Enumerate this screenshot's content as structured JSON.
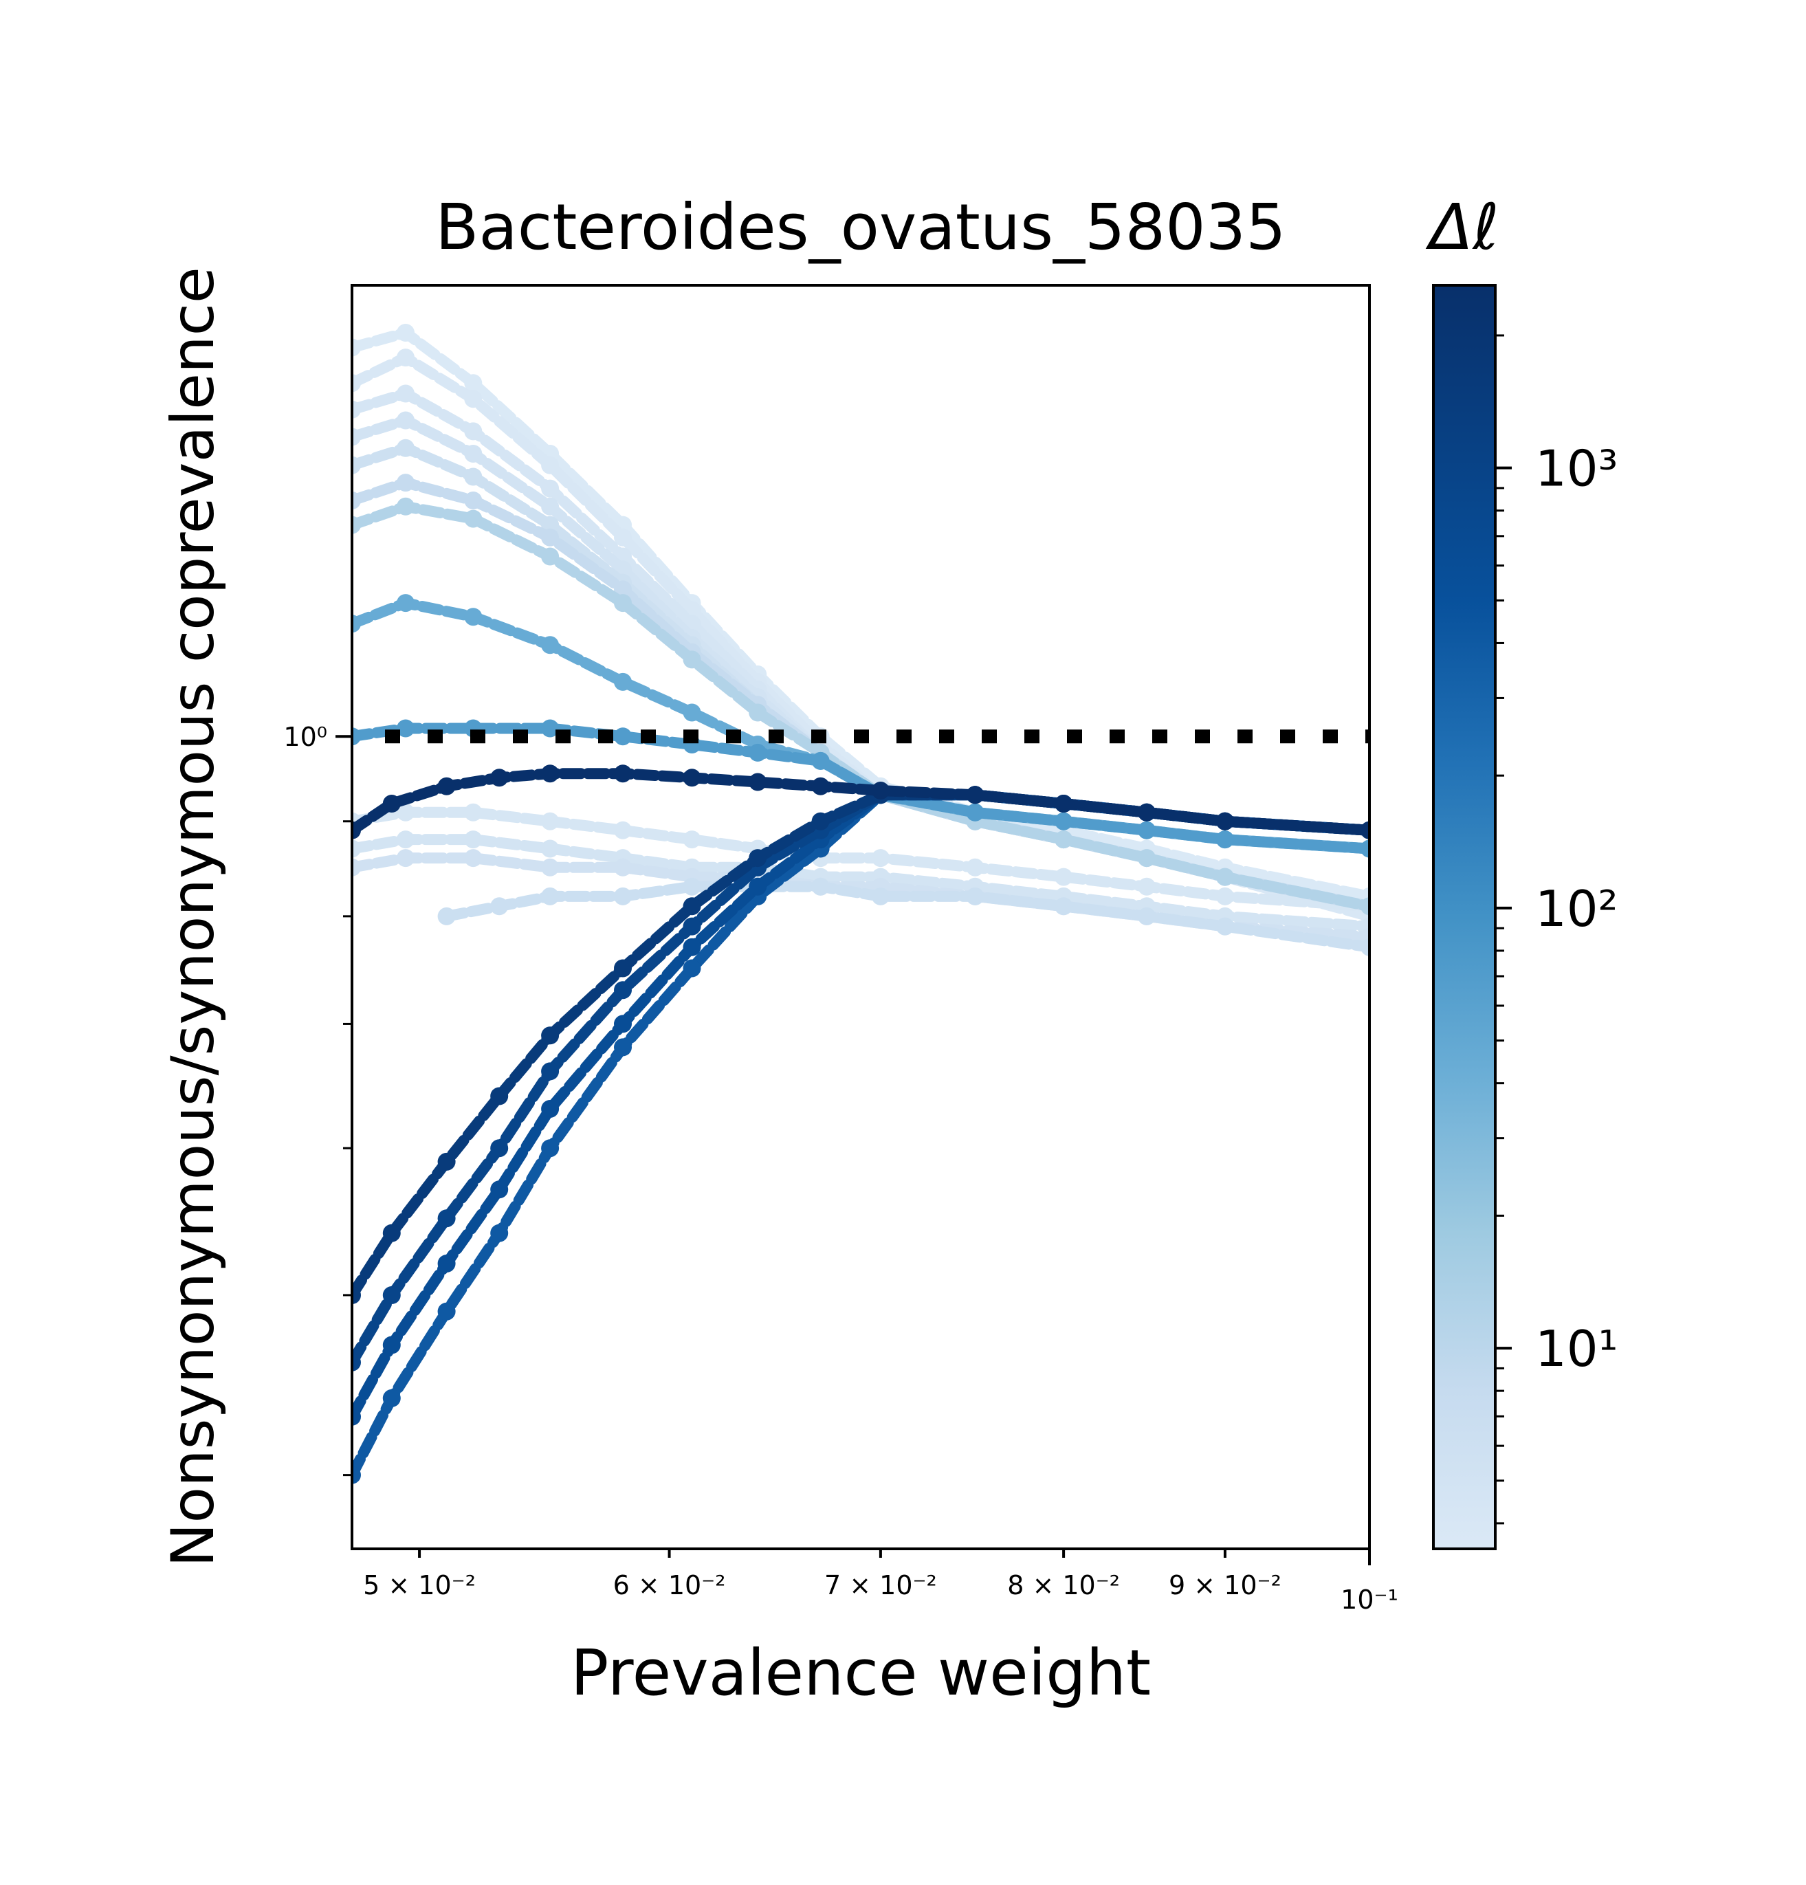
{
  "chart_data": {
    "type": "scatter",
    "title": "Bacteroides_ovatus_58035",
    "xlabel": "Prevalence weight",
    "ylabel": "Nonsynonymous/synonymous coprevalence",
    "xscale": "log",
    "yscale": "log",
    "xlim": [
      0.0476,
      0.1
    ],
    "ylim": [
      0.365,
      1.75
    ],
    "x_ticks": [
      {
        "value": 0.05,
        "label": "5 × 10⁻²"
      },
      {
        "value": 0.06,
        "label": "6 × 10⁻²"
      },
      {
        "value": 0.07,
        "label": "7 × 10⁻²"
      },
      {
        "value": 0.08,
        "label": "8 × 10⁻²"
      },
      {
        "value": 0.09,
        "label": "9 × 10⁻²"
      },
      {
        "value": 0.1,
        "label": "10⁻¹"
      }
    ],
    "y_ticks": [
      {
        "value": 1.0,
        "label": "10⁰"
      }
    ],
    "reference_line": {
      "y": 1.0,
      "style": "dotted",
      "color": "#000000"
    },
    "colorbar": {
      "title": "Δℓ",
      "scale": "log",
      "colormap": "Blues",
      "range": [
        3.5,
        2600
      ],
      "ticks": [
        {
          "value": 10,
          "label": "10¹"
        },
        {
          "value": 100,
          "label": "10²"
        },
        {
          "value": 1000,
          "label": "10³"
        }
      ]
    },
    "grid": false,
    "series": [
      {
        "dl": 3.6,
        "x": [
          0.0476,
          0.0495,
          0.052,
          0.055,
          0.058,
          0.061,
          0.064,
          0.067,
          0.07,
          0.075,
          0.08,
          0.085,
          0.09,
          0.1
        ],
        "y": [
          1.62,
          1.65,
          1.55,
          1.42,
          1.3,
          1.18,
          1.08,
          1.0,
          0.94,
          0.91,
          0.89,
          0.87,
          0.85,
          0.82
        ]
      },
      {
        "dl": 4.0,
        "x": [
          0.0476,
          0.0495,
          0.052,
          0.055,
          0.058,
          0.061,
          0.064,
          0.067,
          0.07,
          0.075,
          0.08,
          0.085,
          0.09,
          0.1
        ],
        "y": [
          1.55,
          1.6,
          1.52,
          1.4,
          1.28,
          1.17,
          1.07,
          0.99,
          0.93,
          0.9,
          0.88,
          0.86,
          0.84,
          0.8
        ]
      },
      {
        "dl": 4.5,
        "x": [
          0.0476,
          0.0495,
          0.052,
          0.055,
          0.058,
          0.061,
          0.064,
          0.067,
          0.07,
          0.075,
          0.08,
          0.085,
          0.09,
          0.1
        ],
        "y": [
          1.5,
          1.53,
          1.46,
          1.36,
          1.25,
          1.15,
          1.06,
          0.98,
          0.93,
          0.9,
          0.88,
          0.86,
          0.84,
          0.81
        ]
      },
      {
        "dl": 5.0,
        "x": [
          0.0476,
          0.0495,
          0.052,
          0.055,
          0.058,
          0.061,
          0.064,
          0.067,
          0.07,
          0.075,
          0.08,
          0.085,
          0.09,
          0.1
        ],
        "y": [
          1.45,
          1.48,
          1.42,
          1.33,
          1.23,
          1.13,
          1.05,
          0.98,
          0.93,
          0.9,
          0.88,
          0.86,
          0.84,
          0.81
        ]
      },
      {
        "dl": 6.0,
        "x": [
          0.0476,
          0.0495,
          0.052,
          0.055,
          0.058,
          0.061,
          0.064,
          0.067,
          0.07,
          0.075,
          0.08,
          0.085,
          0.09,
          0.1
        ],
        "y": [
          1.4,
          1.43,
          1.38,
          1.3,
          1.21,
          1.12,
          1.04,
          0.98,
          0.93,
          0.9,
          0.88,
          0.86,
          0.84,
          0.81
        ]
      },
      {
        "dl": 8.0,
        "x": [
          0.0476,
          0.0495,
          0.052,
          0.055,
          0.058,
          0.061,
          0.064,
          0.067,
          0.07,
          0.075,
          0.08,
          0.085,
          0.09,
          0.1
        ],
        "y": [
          1.34,
          1.37,
          1.34,
          1.28,
          1.2,
          1.11,
          1.04,
          0.98,
          0.93,
          0.9,
          0.88,
          0.86,
          0.84,
          0.81
        ]
      },
      {
        "dl": 12.0,
        "x": [
          0.0476,
          0.0495,
          0.052,
          0.055,
          0.058,
          0.061,
          0.064,
          0.067,
          0.07,
          0.075,
          0.08,
          0.085,
          0.09,
          0.1
        ],
        "y": [
          1.3,
          1.33,
          1.31,
          1.25,
          1.18,
          1.1,
          1.03,
          0.98,
          0.93,
          0.9,
          0.88,
          0.86,
          0.84,
          0.81
        ]
      },
      {
        "dl": 45.0,
        "x": [
          0.0476,
          0.0495,
          0.052,
          0.055,
          0.058,
          0.061,
          0.064,
          0.067,
          0.07,
          0.075,
          0.08,
          0.085,
          0.09,
          0.1
        ],
        "y": [
          1.15,
          1.18,
          1.16,
          1.12,
          1.07,
          1.03,
          0.99,
          0.97,
          0.93,
          0.91,
          0.9,
          0.89,
          0.88,
          0.87
        ]
      },
      {
        "dl": 70.0,
        "x": [
          0.0476,
          0.0495,
          0.052,
          0.055,
          0.058,
          0.061,
          0.064,
          0.067,
          0.07,
          0.075,
          0.08,
          0.085,
          0.09,
          0.1
        ],
        "y": [
          1.0,
          1.01,
          1.01,
          1.01,
          1.0,
          0.99,
          0.98,
          0.97,
          0.93,
          0.91,
          0.9,
          0.89,
          0.88,
          0.87
        ]
      },
      {
        "dl": 4.2,
        "x": [
          0.0476,
          0.0495,
          0.052,
          0.055,
          0.058,
          0.061,
          0.064,
          0.067,
          0.07,
          0.075,
          0.08,
          0.085,
          0.09,
          0.1
        ],
        "y": [
          0.9,
          0.91,
          0.91,
          0.9,
          0.89,
          0.88,
          0.87,
          0.86,
          0.86,
          0.85,
          0.84,
          0.83,
          0.82,
          0.81
        ]
      },
      {
        "dl": 4.8,
        "x": [
          0.0476,
          0.0495,
          0.052,
          0.055,
          0.058,
          0.061,
          0.064,
          0.067,
          0.07,
          0.075,
          0.08,
          0.085,
          0.09,
          0.1
        ],
        "y": [
          0.87,
          0.88,
          0.88,
          0.87,
          0.86,
          0.85,
          0.85,
          0.84,
          0.84,
          0.83,
          0.82,
          0.81,
          0.8,
          0.79
        ]
      },
      {
        "dl": 5.5,
        "x": [
          0.0476,
          0.0495,
          0.052,
          0.055,
          0.058,
          0.061,
          0.064,
          0.067,
          0.07,
          0.075,
          0.08,
          0.085,
          0.09,
          0.1
        ],
        "y": [
          0.85,
          0.86,
          0.86,
          0.85,
          0.85,
          0.84,
          0.84,
          0.83,
          0.83,
          0.82,
          0.81,
          0.8,
          0.79,
          0.78
        ]
      },
      {
        "dl": 6.5,
        "x": [
          0.051,
          0.053,
          0.055,
          0.058,
          0.061,
          0.064,
          0.067,
          0.07,
          0.075,
          0.08,
          0.085,
          0.09,
          0.1
        ],
        "y": [
          0.8,
          0.81,
          0.82,
          0.82,
          0.83,
          0.83,
          0.83,
          0.82,
          0.82,
          0.81,
          0.8,
          0.79,
          0.77
        ]
      },
      {
        "dl": 2600,
        "x": [
          0.0476,
          0.049,
          0.051,
          0.053,
          0.055,
          0.058,
          0.061,
          0.064,
          0.067,
          0.07,
          0.075,
          0.08,
          0.085,
          0.09,
          0.1
        ],
        "y": [
          0.89,
          0.92,
          0.94,
          0.95,
          0.955,
          0.955,
          0.95,
          0.945,
          0.94,
          0.935,
          0.93,
          0.92,
          0.91,
          0.9,
          0.89
        ]
      },
      {
        "dl": 1500,
        "x": [
          0.0476,
          0.049,
          0.051,
          0.053,
          0.055,
          0.058,
          0.061,
          0.064,
          0.067,
          0.07,
          0.075,
          0.08,
          0.085,
          0.09,
          0.1
        ],
        "y": [
          0.5,
          0.54,
          0.59,
          0.64,
          0.69,
          0.75,
          0.81,
          0.86,
          0.9,
          0.93,
          0.93,
          0.92,
          0.91,
          0.9,
          0.89
        ]
      },
      {
        "dl": 900,
        "x": [
          0.0476,
          0.049,
          0.051,
          0.053,
          0.055,
          0.058,
          0.061,
          0.064,
          0.067,
          0.07,
          0.075,
          0.08,
          0.085,
          0.09,
          0.1
        ],
        "y": [
          0.46,
          0.5,
          0.55,
          0.6,
          0.66,
          0.73,
          0.79,
          0.85,
          0.89,
          0.93,
          0.93,
          0.92,
          0.91,
          0.9,
          0.89
        ]
      },
      {
        "dl": 600,
        "x": [
          0.0476,
          0.049,
          0.051,
          0.053,
          0.055,
          0.058,
          0.061,
          0.064,
          0.067,
          0.07,
          0.075,
          0.08,
          0.085,
          0.09,
          0.1
        ],
        "y": [
          0.43,
          0.47,
          0.52,
          0.57,
          0.63,
          0.7,
          0.77,
          0.83,
          0.88,
          0.93,
          0.93,
          0.92,
          0.91,
          0.9,
          0.89
        ]
      },
      {
        "dl": 400,
        "x": [
          0.0476,
          0.049,
          0.051,
          0.053,
          0.055,
          0.058,
          0.061,
          0.064,
          0.067,
          0.07,
          0.075,
          0.08,
          0.085,
          0.09,
          0.1
        ],
        "y": [
          0.4,
          0.44,
          0.49,
          0.54,
          0.6,
          0.68,
          0.75,
          0.82,
          0.87,
          0.93,
          0.93,
          0.92,
          0.91,
          0.9,
          0.89
        ]
      }
    ]
  }
}
